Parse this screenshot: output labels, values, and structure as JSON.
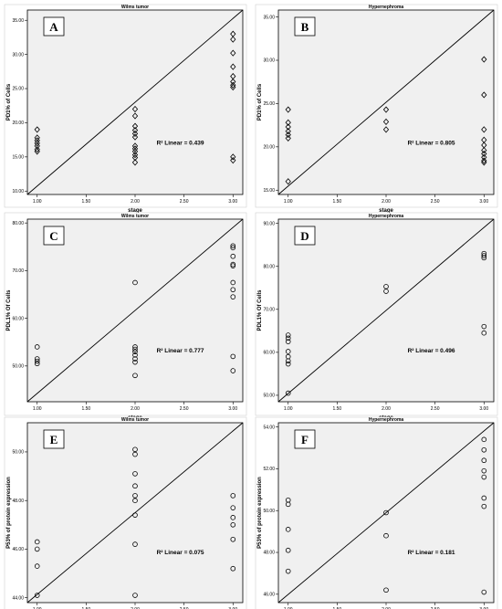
{
  "chart_data": [
    {
      "type": "scatter",
      "panel_letter": "A",
      "title": "Wilms tumor",
      "xlabel": "stage",
      "ylabel": "PD1% of Cells",
      "marker": "diamond",
      "xlim": [
        0.9,
        3.1
      ],
      "ylim": [
        9.5,
        36.5
      ],
      "xticks": [
        "1.00",
        "1.50",
        "2.00",
        "2.50",
        "3.00"
      ],
      "xtick_values": [
        1.0,
        1.5,
        2.0,
        2.5,
        3.0
      ],
      "yticks": [
        "10.00",
        "15.00",
        "20.00",
        "25.00",
        "30.00",
        "35.00"
      ],
      "ytick_values": [
        10,
        15,
        20,
        25,
        30,
        35
      ],
      "r2_label": "R² Linear = 0.439",
      "points": [
        [
          1,
          19.0
        ],
        [
          1,
          17.8
        ],
        [
          1,
          17.4
        ],
        [
          1,
          17.0
        ],
        [
          1,
          16.6
        ],
        [
          1,
          16.1
        ],
        [
          1,
          15.8
        ],
        [
          2,
          22.0
        ],
        [
          2,
          21.0
        ],
        [
          2,
          19.5
        ],
        [
          2,
          18.9
        ],
        [
          2,
          18.4
        ],
        [
          2,
          17.9
        ],
        [
          2,
          16.6
        ],
        [
          2,
          16.2
        ],
        [
          2,
          15.8
        ],
        [
          2,
          15.3
        ],
        [
          2,
          14.9
        ],
        [
          2,
          14.2
        ],
        [
          3,
          33.0
        ],
        [
          3,
          32.2
        ],
        [
          3,
          30.2
        ],
        [
          3,
          28.2
        ],
        [
          3,
          26.8
        ],
        [
          3,
          26.0
        ],
        [
          3,
          25.5
        ],
        [
          3,
          25.2
        ],
        [
          3,
          15.0
        ],
        [
          3,
          14.5
        ]
      ]
    },
    {
      "type": "scatter",
      "panel_letter": "B",
      "title": "Hypernephroma",
      "xlabel": "stage",
      "ylabel": "PD1% of Cells",
      "marker": "diamond",
      "xlim": [
        0.9,
        3.1
      ],
      "ylim": [
        14.5,
        35.8
      ],
      "xticks": [
        "1.00",
        "1.50",
        "2.00",
        "2.50",
        "3.00"
      ],
      "xtick_values": [
        1.0,
        1.5,
        2.0,
        2.5,
        3.0
      ],
      "yticks": [
        "15.00",
        "20.00",
        "25.00",
        "30.00",
        "35.00"
      ],
      "ytick_values": [
        15,
        20,
        25,
        30,
        35
      ],
      "r2_label": "R² Linear = 0.805",
      "points": [
        [
          1,
          24.3
        ],
        [
          1,
          22.8
        ],
        [
          1,
          22.3
        ],
        [
          1,
          21.8
        ],
        [
          1,
          21.4
        ],
        [
          1,
          21.0
        ],
        [
          1,
          16.0
        ],
        [
          2,
          24.3
        ],
        [
          2,
          22.9
        ],
        [
          2,
          22.0
        ],
        [
          3,
          30.1
        ],
        [
          3,
          26.0
        ],
        [
          3,
          22.0
        ],
        [
          3,
          20.8
        ],
        [
          3,
          20.2
        ],
        [
          3,
          19.6
        ],
        [
          3,
          19.2
        ],
        [
          3,
          18.8
        ],
        [
          3,
          18.4
        ],
        [
          3,
          18.2
        ]
      ]
    },
    {
      "type": "scatter",
      "panel_letter": "C",
      "title": "Wilms tumor",
      "xlabel": "stage",
      "ylabel": "PDL1% Of Cells",
      "marker": "circle",
      "xlim": [
        0.9,
        3.1
      ],
      "ylim": [
        42.5,
        80.8
      ],
      "xticks": [
        "1.00",
        "1.50",
        "2.00",
        "2.50",
        "3.00"
      ],
      "xtick_values": [
        1.0,
        1.5,
        2.0,
        2.5,
        3.0
      ],
      "yticks": [
        "50.00",
        "60.00",
        "70.00",
        "80.00"
      ],
      "ytick_values": [
        50,
        60,
        70,
        80
      ],
      "r2_label": "R² Linear = 0.777",
      "points": [
        [
          1,
          54.0
        ],
        [
          1,
          51.5
        ],
        [
          1,
          51.0
        ],
        [
          1,
          50.5
        ],
        [
          2,
          67.5
        ],
        [
          2,
          54.0
        ],
        [
          2,
          53.5
        ],
        [
          2,
          53.0
        ],
        [
          2,
          52.3
        ],
        [
          2,
          51.5
        ],
        [
          2,
          50.8
        ],
        [
          2,
          48.0
        ],
        [
          3,
          75.2
        ],
        [
          3,
          74.8
        ],
        [
          3,
          73.0
        ],
        [
          3,
          71.3
        ],
        [
          3,
          71.0
        ],
        [
          3,
          67.5
        ],
        [
          3,
          66.0
        ],
        [
          3,
          64.5
        ],
        [
          3,
          52.0
        ],
        [
          3,
          49.0
        ]
      ]
    },
    {
      "type": "scatter",
      "panel_letter": "D",
      "title": "Hypernephroma",
      "xlabel": "stage",
      "ylabel": "PDL1% Of Cells",
      "marker": "circle",
      "xlim": [
        0.9,
        3.1
      ],
      "ylim": [
        48.5,
        91.0
      ],
      "xticks": [
        "1.00",
        "1.50",
        "2.00",
        "2.50",
        "3.00"
      ],
      "xtick_values": [
        1.0,
        1.5,
        2.0,
        2.5,
        3.0
      ],
      "yticks": [
        "50.00",
        "60.00",
        "70.00",
        "80.00",
        "90.00"
      ],
      "ytick_values": [
        50,
        60,
        70,
        80,
        90
      ],
      "r2_label": "R² Linear = 0.496",
      "points": [
        [
          1,
          64.0
        ],
        [
          1,
          63.3
        ],
        [
          1,
          62.5
        ],
        [
          1,
          60.2
        ],
        [
          1,
          59.0
        ],
        [
          1,
          58.0
        ],
        [
          1,
          57.3
        ],
        [
          1,
          50.5
        ],
        [
          2,
          75.3
        ],
        [
          2,
          74.2
        ],
        [
          3,
          83.0
        ],
        [
          3,
          82.5
        ],
        [
          3,
          82.0
        ],
        [
          3,
          66.0
        ],
        [
          3,
          64.5
        ]
      ]
    },
    {
      "type": "scatter",
      "panel_letter": "E",
      "title": "Wilms tumor",
      "xlabel": "stage",
      "ylabel": "P53% of protein expression",
      "marker": "circle",
      "xlim": [
        0.9,
        3.1
      ],
      "ylim": [
        43.8,
        51.2
      ],
      "xticks": [
        "1.00",
        "1.50",
        "2.00",
        "2.50",
        "3.00"
      ],
      "xtick_values": [
        1.0,
        1.5,
        2.0,
        2.5,
        3.0
      ],
      "yticks": [
        "44.00",
        "46.00",
        "48.00",
        "50.00"
      ],
      "ytick_values": [
        44,
        46,
        48,
        50
      ],
      "r2_label": "R² Linear = 0.075",
      "points": [
        [
          1,
          46.3
        ],
        [
          1,
          46.0
        ],
        [
          1,
          45.3
        ],
        [
          1,
          44.1
        ],
        [
          2,
          50.1
        ],
        [
          2,
          49.9
        ],
        [
          2,
          49.1
        ],
        [
          2,
          48.6
        ],
        [
          2,
          48.2
        ],
        [
          2,
          48.0
        ],
        [
          2,
          47.4
        ],
        [
          2,
          46.2
        ],
        [
          2,
          44.1
        ],
        [
          3,
          48.2
        ],
        [
          3,
          47.7
        ],
        [
          3,
          47.3
        ],
        [
          3,
          47.0
        ],
        [
          3,
          46.4
        ],
        [
          3,
          45.2
        ]
      ]
    },
    {
      "type": "scatter",
      "panel_letter": "F",
      "title": "Hypernephroma",
      "xlabel": "stage",
      "ylabel": "P53% of protein expression",
      "marker": "circle",
      "xlim": [
        0.9,
        3.1
      ],
      "ylim": [
        45.6,
        54.2
      ],
      "xticks": [
        "1.00",
        "1.50",
        "2.00",
        "2.50",
        "3.00"
      ],
      "xtick_values": [
        1.0,
        1.5,
        2.0,
        2.5,
        3.0
      ],
      "yticks": [
        "46.00",
        "48.00",
        "50.00",
        "52.00",
        "54.00"
      ],
      "ytick_values": [
        46,
        48,
        50,
        52,
        54
      ],
      "r2_label": "R² Linear = 0.181",
      "points": [
        [
          1,
          50.5
        ],
        [
          1,
          50.3
        ],
        [
          1,
          49.1
        ],
        [
          1,
          48.1
        ],
        [
          1,
          47.1
        ],
        [
          2,
          49.9
        ],
        [
          2,
          48.8
        ],
        [
          2,
          46.2
        ],
        [
          3,
          53.4
        ],
        [
          3,
          52.9
        ],
        [
          3,
          52.4
        ],
        [
          3,
          51.9
        ],
        [
          3,
          51.6
        ],
        [
          3,
          50.6
        ],
        [
          3,
          50.2
        ],
        [
          3,
          46.1
        ]
      ]
    }
  ]
}
